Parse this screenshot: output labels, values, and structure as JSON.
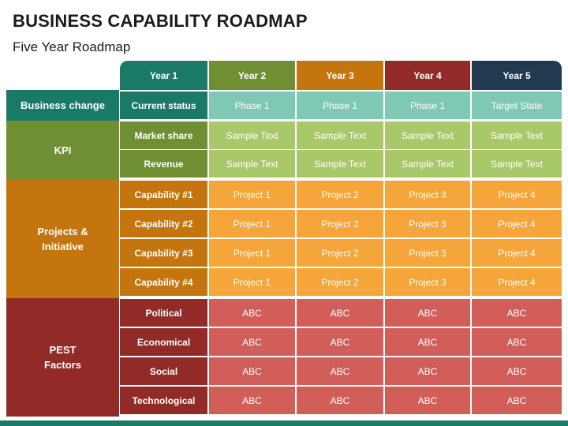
{
  "title": "BUSINESS CAPABILITY ROADMAP",
  "subtitle": "Five Year Roadmap",
  "years": [
    "Year 1",
    "Year 2",
    "Year 3",
    "Year 4",
    "Year 5"
  ],
  "categories": {
    "business_change": "Business change",
    "kpi": "KPI",
    "projects": "Projects &\nInitiative",
    "pest": "PEST\nFactors"
  },
  "rows": {
    "current_status": {
      "label": "Current status",
      "values": [
        "Phase 1",
        "Phase 1",
        "Phase 1",
        "Target State"
      ]
    },
    "market_share": {
      "label": "Market share",
      "values": [
        "Sample Text",
        "Sample Text",
        "Sample Text",
        "Sample Text"
      ]
    },
    "revenue": {
      "label": "Revenue",
      "values": [
        "Sample Text",
        "Sample Text",
        "Sample Text",
        "Sample Text"
      ]
    },
    "cap1": {
      "label": "Capability #1",
      "values": [
        "Project 1",
        "Project 2",
        "Project 3",
        "Project 4"
      ]
    },
    "cap2": {
      "label": "Capability #2",
      "values": [
        "Project 1",
        "Project 2",
        "Project 3",
        "Project 4"
      ]
    },
    "cap3": {
      "label": "Capability #3",
      "values": [
        "Project 1",
        "Project 2",
        "Project 3",
        "Project 4"
      ]
    },
    "cap4": {
      "label": "Capability #4",
      "values": [
        "Project 1",
        "Project 2",
        "Project 3",
        "Project 4"
      ]
    },
    "political": {
      "label": "Political",
      "values": [
        "ABC",
        "ABC",
        "ABC",
        "ABC"
      ]
    },
    "economical": {
      "label": "Economical",
      "values": [
        "ABC",
        "ABC",
        "ABC",
        "ABC"
      ]
    },
    "social": {
      "label": "Social",
      "values": [
        "ABC",
        "ABC",
        "ABC",
        "ABC"
      ]
    },
    "technological": {
      "label": "Technological",
      "values": [
        "ABC",
        "ABC",
        "ABC",
        "ABC"
      ]
    }
  },
  "colors": {
    "teal": "#1a7a68",
    "green": "#6f8f32",
    "orange": "#c4750e",
    "red": "#922b27",
    "navy": "#223a4f"
  }
}
